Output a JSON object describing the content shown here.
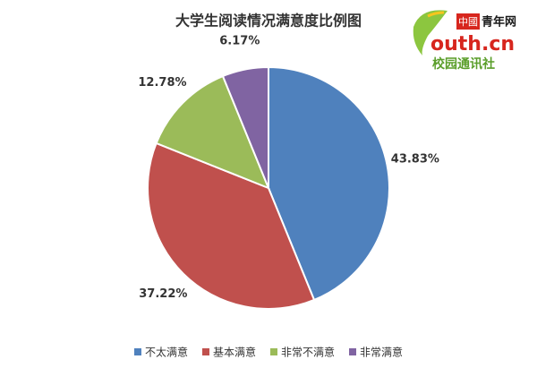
{
  "chart_data": {
    "type": "pie",
    "title": "大学生阅读情况满意度比例图",
    "categories": [
      "不太满意",
      "基本满意",
      "非常不满意",
      "非常满意"
    ],
    "values": [
      43.83,
      37.22,
      12.78,
      6.17
    ],
    "value_labels": [
      "43.83%",
      "37.22%",
      "12.78%",
      "6.17%"
    ],
    "colors": [
      "#4f81bd",
      "#c0504d",
      "#9bbb59",
      "#8064a2"
    ],
    "legend": "bottom"
  },
  "logo": {
    "brand": "中國",
    "name": "青年网",
    "site": "outh.cn",
    "tagline": "校园通讯社"
  }
}
